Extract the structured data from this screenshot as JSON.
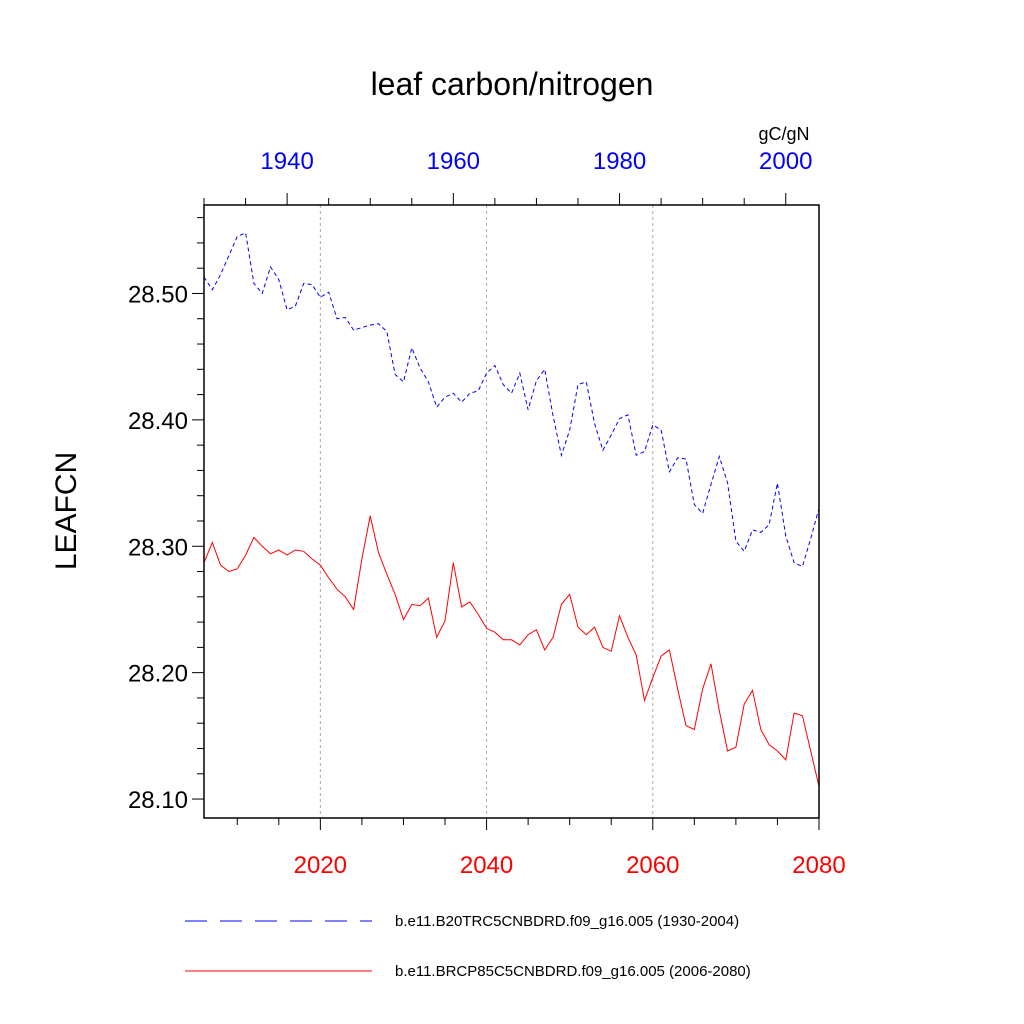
{
  "chart_data": {
    "type": "line",
    "title": "leaf carbon/nitrogen",
    "ylabel": "LEAFCN",
    "units": "gC/gN",
    "ylim": [
      28.085,
      28.57
    ],
    "yticks": [
      28.1,
      28.2,
      28.3,
      28.4,
      28.5
    ],
    "ytick_labels": [
      "28.10",
      "28.20",
      "28.30",
      "28.40",
      "28.50"
    ],
    "x_bottom": {
      "range": [
        2006,
        2080
      ],
      "ticks": [
        2020,
        2040,
        2060,
        2080
      ],
      "tick_labels": [
        "2020",
        "2040",
        "2060",
        "2080"
      ],
      "color": "#ff0000"
    },
    "x_top": {
      "range": [
        1930,
        2004
      ],
      "ticks": [
        1940,
        1960,
        1980,
        2000
      ],
      "tick_labels": [
        "1940",
        "1960",
        "1980",
        "2000"
      ],
      "color": "#0000ff"
    },
    "grid": "vertical dotted gray at bottom-axis ticks",
    "series": [
      {
        "name": "b.e11.B20TRC5CNBDRD.f09_g16.005 (1930-2004)",
        "axis": "top",
        "color": "#0000ff",
        "style": "dashed",
        "x_start": 1930,
        "values": [
          28.513,
          28.503,
          28.515,
          28.53,
          28.545,
          28.548,
          28.508,
          28.5,
          28.521,
          28.511,
          28.487,
          28.49,
          28.508,
          28.507,
          28.497,
          28.501,
          28.48,
          28.481,
          28.471,
          28.473,
          28.475,
          28.476,
          28.47,
          28.436,
          28.43,
          28.457,
          28.441,
          28.43,
          28.41,
          28.418,
          28.421,
          28.414,
          28.421,
          28.423,
          28.437,
          28.443,
          28.428,
          28.421,
          28.437,
          28.408,
          28.431,
          28.44,
          28.403,
          28.372,
          28.392,
          28.428,
          28.43,
          28.397,
          28.376,
          28.388,
          28.401,
          28.404,
          28.372,
          28.375,
          28.396,
          28.392,
          28.359,
          28.37,
          28.369,
          28.333,
          28.326,
          28.349,
          28.371,
          28.35,
          28.304,
          28.296,
          28.313,
          28.311,
          28.317,
          28.35,
          28.308,
          28.287,
          28.284,
          28.306,
          28.33
        ]
      },
      {
        "name": "b.e11.BRCP85C5CNBDRD.f09_g16.005 (2006-2080)",
        "axis": "bottom",
        "color": "#ff0000",
        "style": "solid",
        "x_start": 2006,
        "values": [
          28.287,
          28.303,
          28.285,
          28.28,
          28.282,
          28.293,
          28.307,
          28.3,
          28.294,
          28.297,
          28.293,
          28.297,
          28.296,
          28.29,
          28.285,
          28.275,
          28.266,
          28.26,
          28.25,
          28.29,
          28.324,
          28.295,
          28.278,
          28.262,
          28.242,
          28.254,
          28.253,
          28.259,
          28.228,
          28.241,
          28.287,
          28.252,
          28.256,
          28.246,
          28.235,
          28.232,
          28.226,
          28.226,
          28.222,
          28.23,
          28.234,
          28.218,
          28.228,
          28.254,
          28.262,
          28.236,
          28.23,
          28.236,
          28.22,
          28.217,
          28.245,
          28.228,
          28.214,
          28.178,
          28.196,
          28.213,
          28.218,
          28.187,
          28.158,
          28.155,
          28.187,
          28.207,
          28.17,
          28.138,
          28.141,
          28.175,
          28.186,
          28.155,
          28.143,
          28.138,
          28.131,
          28.168,
          28.166,
          28.138,
          28.11
        ]
      }
    ]
  }
}
